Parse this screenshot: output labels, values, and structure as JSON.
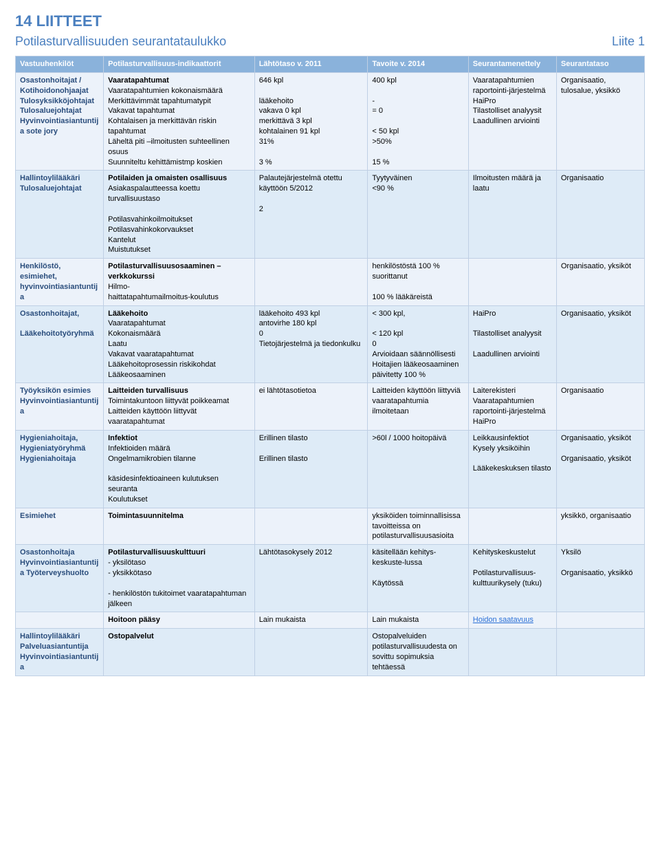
{
  "section_number": "14",
  "section_label": "LIITTEET",
  "subtitle_left": "Potilasturvallisuuden seurantataulukko",
  "subtitle_right": "Liite 1",
  "colors": {
    "heading": "#4a7fbf",
    "header_bg": "#8ab2db",
    "header_fg": "#ffffff",
    "row_odd": "#ecf2fa",
    "row_even": "#deebf7",
    "border": "#bfcfe4",
    "col1_text": "#2a4d7c",
    "link": "#2a6fd6"
  },
  "columns": [
    "Vastuuhenkilöt",
    "Potilasturvallisuus-indikaattorit",
    "Lähtötaso v. 2011",
    "Tavoite v. 2014",
    "Seurantamenettely",
    "Seurantataso"
  ],
  "rows": [
    {
      "c1": "Osastonhoitajat / Kotihoidonohjaajat Tulosyksikköjohtajat Tulosaluejohtajat Hyvinvointiasiantuntija sote jory",
      "c2_title": "Vaaratapahtumat",
      "c2_body": "Vaaratapahtumien kokonaismäärä\nMerkittävimmät tapahtumatypit\nVakavat tapahtumat\nKohtalaisen ja merkittävän riskin tapahtumat\nLäheltä piti –ilmoitusten suhteellinen osuus\nSuunniteltu kehittämistmp koskien",
      "c3": "646 kpl\n\nlääkehoito\nvakava 0 kpl\nmerkittävä 3 kpl\nkohtalainen 91 kpl\n31%\n\n3 %",
      "c4": "400 kpl\n\n-\n= 0\n\n< 50 kpl\n>50%\n\n15 %",
      "c5": "Vaaratapahtumien raportointi-järjestelmä HaiPro\nTilastolliset analyysit\nLaadullinen arviointi",
      "c6": "Organisaatio, tulosalue, yksikkö"
    },
    {
      "c1": "Hallintoylilääkäri Tulosaluejohtajat",
      "c2_title": "Potilaiden ja omaisten osallisuus",
      "c2_body": "Asiakaspalautteessa koettu turvallisuustaso\n\nPotilasvahinkoilmoitukset\nPotilasvahinkokorvaukset\nKantelut\nMuistutukset",
      "c3": "Palautejärjestelmä otettu käyttöön 5/2012\n\n2",
      "c4": "Tyytyväinen\n<90 %",
      "c5": "Ilmoitusten määrä ja laatu",
      "c6": "Organisaatio"
    },
    {
      "c1": "Henkilöstö, esimiehet, hyvinvointiasiantuntija",
      "c2_title": "Potilasturvallisuusosaaminen – verkkokurssi",
      "c2_body": "Hilmo-\nhaittatapahtumailmoitus-koulutus",
      "c3": "",
      "c4": "henkilöstöstä 100 % suorittanut\n\n100 % lääkäreistä",
      "c5": "",
      "c6": "Organisaatio, yksiköt"
    },
    {
      "c1": "Osastonhoitajat,\n\nLääkehoitotyöryhmä",
      "c2_title": "Lääkehoito",
      "c2_body": "Vaaratapahtumat\nKokonaismäärä\nLaatu\nVakavat vaaratapahtumat\nLääkehoitoprosessin riskikohdat\nLääkeosaaminen",
      "c3": "lääkehoito 493 kpl\nantovirhe 180 kpl\n0\nTietojärjestelmä ja tiedonkulku",
      "c4": "< 300 kpl,\n\n< 120 kpl\n0\nArvioidaan säännöllisesti\nHoitajien lääkeosaaminen päivitetty 100 %",
      "c5": "HaiPro\n\nTilastolliset analyysit\n\nLaadullinen arviointi",
      "c6": "Organisaatio, yksiköt"
    },
    {
      "c1": "Työyksikön esimies\nHyvinvointiasiantuntija",
      "c2_title": "Laitteiden turvallisuus",
      "c2_body": "Toimintakuntoon liittyvät poikkeamat\nLaitteiden käyttöön liittyvät vaaratapahtumat",
      "c3": "ei lähtötasotietoa",
      "c4": "Laitteiden käyttöön liittyviä vaaratapahtumia ilmoitetaan",
      "c5": "Laiterekisteri\nVaaratapahtumien raportointi-järjestelmä HaiPro",
      "c6": "Organisaatio"
    },
    {
      "c1": "Hygieniahoitaja, Hygieniatyöryhmä Hygieniahoitaja",
      "c2_title": "Infektiot",
      "c2_body": "Infektioiden määrä\nOngelmamikrobien tilanne\n\nkäsidesinfektioaineen kulutuksen seuranta\nKoulutukset",
      "c3": "Erillinen tilasto\n\nErillinen tilasto",
      "c4": ">60l / 1000 hoitopäivä",
      "c5": "Leikkausinfektiot\nKysely yksiköihin\n\nLääkekeskuksen tilasto",
      "c6": "Organisaatio, yksiköt\n\nOrganisaatio, yksiköt"
    },
    {
      "c1": "Esimiehet",
      "c2_title": "Toimintasuunnitelma",
      "c2_body": "",
      "c3": "",
      "c4": "yksiköiden toiminnallisissa tavoitteissa on potilasturvallisuusasioita",
      "c5": "",
      "c6": "yksikkö, organisaatio"
    },
    {
      "c1": "Osastonhoitaja Hyvinvointiasiantuntija Työterveyshuolto",
      "c2_title": "Potilasturvallisuuskulttuuri",
      "c2_body": "- yksilötaso\n- yksikkötaso\n\n- henkilöstön tukitoimet vaaratapahtuman jälkeen",
      "c3": "Lähtötasokysely 2012",
      "c4": "käsitellään kehitys-keskuste-lussa\n\nKäytössä",
      "c5": "Kehityskeskustelut\n\nPotilasturvallisuus-kulttuurikysely (tuku)",
      "c6": "Yksilö\n\nOrganisaatio, yksikkö"
    },
    {
      "c1": "",
      "c2_title": "Hoitoon pääsy",
      "c2_body": "",
      "c3": "Lain mukaista",
      "c4": "Lain mukaista",
      "c5_link": "Hoidon saatavuus",
      "c6": ""
    },
    {
      "c1": "Hallintoylilääkäri Palveluasiantuntija Hyvinvointiasiantuntija",
      "c2_title": "Ostopalvelut",
      "c2_body": "",
      "c3": "",
      "c4": "Ostopalveluiden potilasturvallisuudesta on sovittu sopimuksia tehtäessä",
      "c5": "",
      "c6": ""
    }
  ]
}
